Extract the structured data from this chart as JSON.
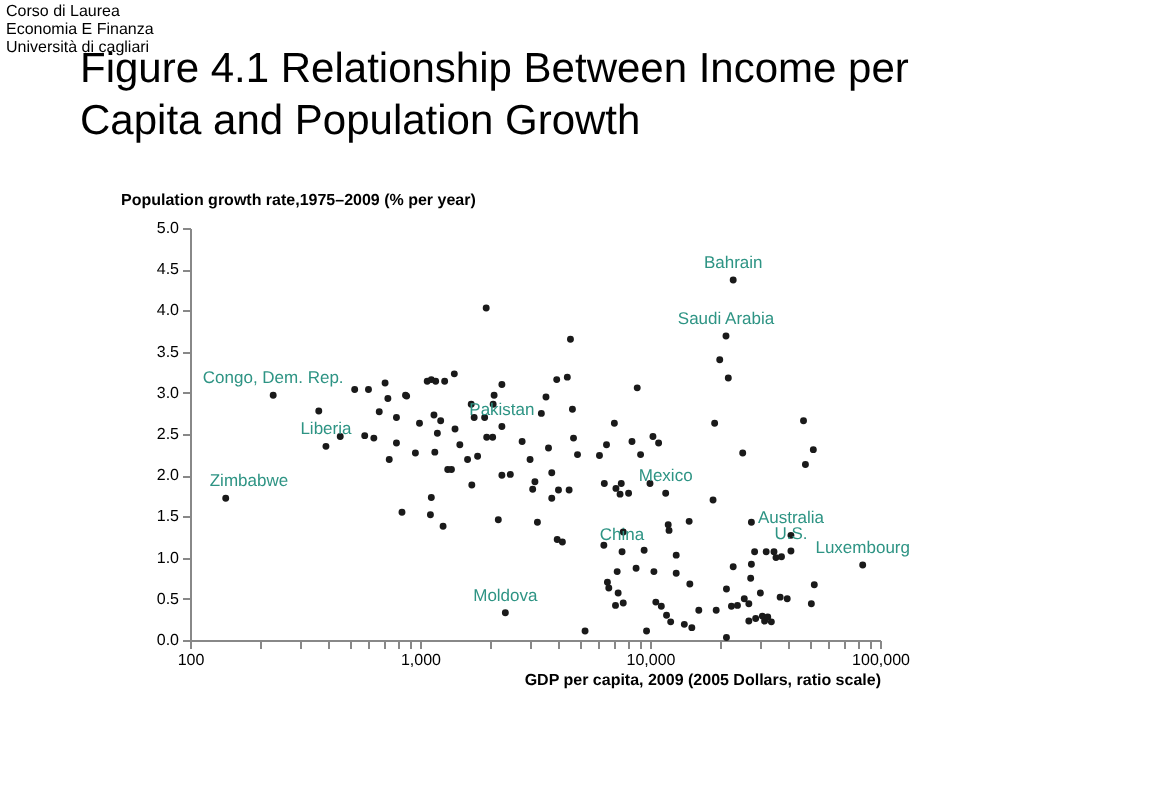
{
  "chart_data": {
    "type": "scatter",
    "title": "Figure 4.1 Relationship Between Income per Capita and Population Growth",
    "xlabel": "GDP per capita, 2009 (2005 Dollars, ratio scale)",
    "ylabel": "Population growth rate,1975–2009 (% per year)",
    "log": "x",
    "color": "#1a1a1a",
    "marker": "circle",
    "grid": false,
    "xlim": [
      100,
      100000
    ],
    "xticks": [
      100,
      {
        "value": 200,
        "label": null
      },
      {
        "value": 300,
        "label": null
      },
      {
        "value": 400,
        "label": null
      },
      {
        "value": 500,
        "label": null
      },
      {
        "value": 600,
        "label": null
      },
      {
        "value": 700,
        "label": null
      },
      {
        "value": 800,
        "label": null
      },
      {
        "value": 900,
        "label": null
      },
      {
        "value": 1000,
        "label": "1,000"
      },
      {
        "value": 2000,
        "label": null
      },
      {
        "value": 3000,
        "label": null
      },
      {
        "value": 4000,
        "label": null
      },
      {
        "value": 5000,
        "label": null
      },
      {
        "value": 6000,
        "label": null
      },
      {
        "value": 7000,
        "label": null
      },
      {
        "value": 8000,
        "label": null
      },
      {
        "value": 9000,
        "label": null
      },
      {
        "value": 10000,
        "label": "10,000"
      },
      {
        "value": 20000,
        "label": null
      },
      {
        "value": 30000,
        "label": null
      },
      {
        "value": 40000,
        "label": null
      },
      {
        "value": 50000,
        "label": null
      },
      {
        "value": 60000,
        "label": null
      },
      {
        "value": 70000,
        "label": null
      },
      {
        "value": 80000,
        "label": null
      },
      {
        "value": 90000,
        "label": null
      },
      {
        "value": 100000,
        "label": "100,000"
      }
    ],
    "ylim": [
      0,
      5
    ],
    "yticks": [
      {
        "value": 0,
        "label": "0.0"
      },
      0.5,
      {
        "value": 1,
        "label": "1.0"
      },
      1.5,
      {
        "value": 2,
        "label": "2.0"
      },
      2.5,
      {
        "value": 3,
        "label": "3.0"
      },
      3.5,
      {
        "value": 4,
        "label": "4.0"
      },
      4.5,
      {
        "value": 5,
        "label": "5.0"
      }
    ],
    "x": [
      143,
      230,
      363,
      390,
      450,
      520,
      575,
      597,
      630,
      665,
      705,
      725,
      735,
      790,
      790,
      835,
      865,
      875,
      955,
      995,
      1075,
      1120,
      1120,
      1110,
      1150,
      1170,
      1160,
      1190,
      1230,
      1260,
      1280,
      1320,
      1370,
      1410,
      1420,
      1490,
      1610,
      1670,
      1680,
      1720,
      1780,
      1910,
      1940,
      1950,
      2070,
      2080,
      2100,
      2190,
      2270,
      2270,
      2270,
      2470,
      2350,
      2780,
      3010,
      3090,
      3160,
      3240,
      3370,
      3530,
      3620,
      3740,
      3740,
      3930,
      3950,
      4000,
      4160,
      4370,
      4450,
      4510,
      4600,
      4650,
      4840,
      5220,
      6030,
      6300,
      6330,
      6470,
      6530,
      6620,
      7000,
      7080,
      7110,
      7200,
      7270,
      7410,
      7500,
      7560,
      7650,
      7650,
      8070,
      8350,
      8700,
      8800,
      9100,
      9430,
      9660,
      10000,
      10300,
      10400,
      10600,
      10900,
      11700,
      11200,
      11800,
      12000,
      12100,
      12300,
      13000,
      13000,
      14100,
      14800,
      14900,
      15200,
      16300,
      18800,
      19100,
      19400,
      20100,
      21400,
      21500,
      21900,
      23000,
      21500,
      22600,
      23000,
      24000,
      25300,
      25700,
      26900,
      27400,
      27600,
      27600,
      28500,
      26900,
      28800,
      30200,
      30800,
      31500,
      32000,
      32500,
      33700,
      34600,
      35300,
      36800,
      37300,
      39500,
      41000,
      41000,
      46500,
      47400,
      50300,
      51300,
      51800,
      84100
    ],
    "values": [
      1.72,
      2.97,
      2.78,
      2.35,
      2.47,
      3.04,
      2.48,
      3.04,
      2.45,
      2.77,
      3.12,
      2.93,
      2.19,
      2.7,
      2.39,
      1.55,
      2.97,
      2.96,
      2.27,
      2.63,
      3.14,
      3.16,
      1.73,
      1.52,
      2.73,
      3.14,
      2.28,
      2.51,
      2.66,
      1.38,
      3.14,
      2.07,
      2.07,
      3.23,
      2.56,
      2.37,
      2.19,
      2.86,
      1.88,
      2.7,
      2.23,
      2.7,
      4.03,
      2.46,
      2.46,
      2.86,
      2.97,
      1.46,
      2.59,
      3.1,
      2.0,
      2.01,
      0.33,
      2.41,
      2.19,
      1.83,
      1.92,
      1.43,
      2.75,
      2.95,
      2.33,
      2.03,
      1.72,
      3.16,
      1.22,
      1.82,
      1.19,
      3.19,
      1.82,
      3.65,
      2.8,
      2.45,
      2.25,
      0.11,
      2.24,
      1.15,
      1.9,
      2.37,
      0.7,
      0.63,
      2.63,
      0.42,
      1.84,
      0.83,
      0.57,
      1.77,
      1.9,
      1.07,
      0.45,
      1.31,
      1.78,
      2.41,
      0.87,
      3.06,
      2.25,
      1.09,
      0.11,
      1.9,
      2.47,
      0.83,
      0.46,
      2.39,
      1.78,
      0.41,
      0.3,
      1.4,
      1.33,
      0.22,
      1.03,
      0.81,
      0.19,
      1.44,
      0.68,
      0.15,
      0.36,
      1.7,
      2.63,
      0.36,
      3.4,
      3.69,
      0.62,
      3.18,
      4.37,
      0.03,
      0.41,
      0.89,
      0.42,
      2.27,
      0.5,
      0.44,
      0.75,
      1.43,
      0.92,
      1.07,
      0.23,
      0.26,
      0.57,
      0.29,
      0.23,
      1.07,
      0.28,
      0.22,
      1.07,
      1.0,
      0.52,
      1.01,
      0.5,
      1.27,
      1.08,
      2.66,
      2.13,
      0.44,
      2.31,
      0.67,
      0.91
    ],
    "annotations": [
      "Corso di Laurea",
      "Economia E Finanza",
      "Università di cagliari",
      {
        "text": "Bahrain",
        "x": 23000,
        "y": 4.37
      },
      {
        "text": "Saudi Arabia",
        "x": 21400,
        "y": 3.69
      },
      {
        "text": "Pakistan",
        "x": 2270,
        "y": 2.59
      },
      {
        "text": "Congo, Dem. Rep.",
        "x": 230,
        "y": 2.97
      },
      {
        "text": "Liberia",
        "x": 390,
        "y": 2.35
      },
      {
        "text": "Zimbabwe",
        "x": 143,
        "y": 1.72
      },
      {
        "text": "Mexico",
        "x": 11700,
        "y": 1.78
      },
      {
        "text": "Luxembourg",
        "x": 84100,
        "y": 0.91
      },
      {
        "text": "Australia",
        "x": 41000,
        "y": 1.27
      },
      {
        "text": "U.S.",
        "x": 41000,
        "y": 1.08
      },
      {
        "text": "China",
        "x": 7560,
        "y": 1.07
      },
      {
        "text": "Moldova",
        "x": 2350,
        "y": 0.33
      }
    ]
  }
}
